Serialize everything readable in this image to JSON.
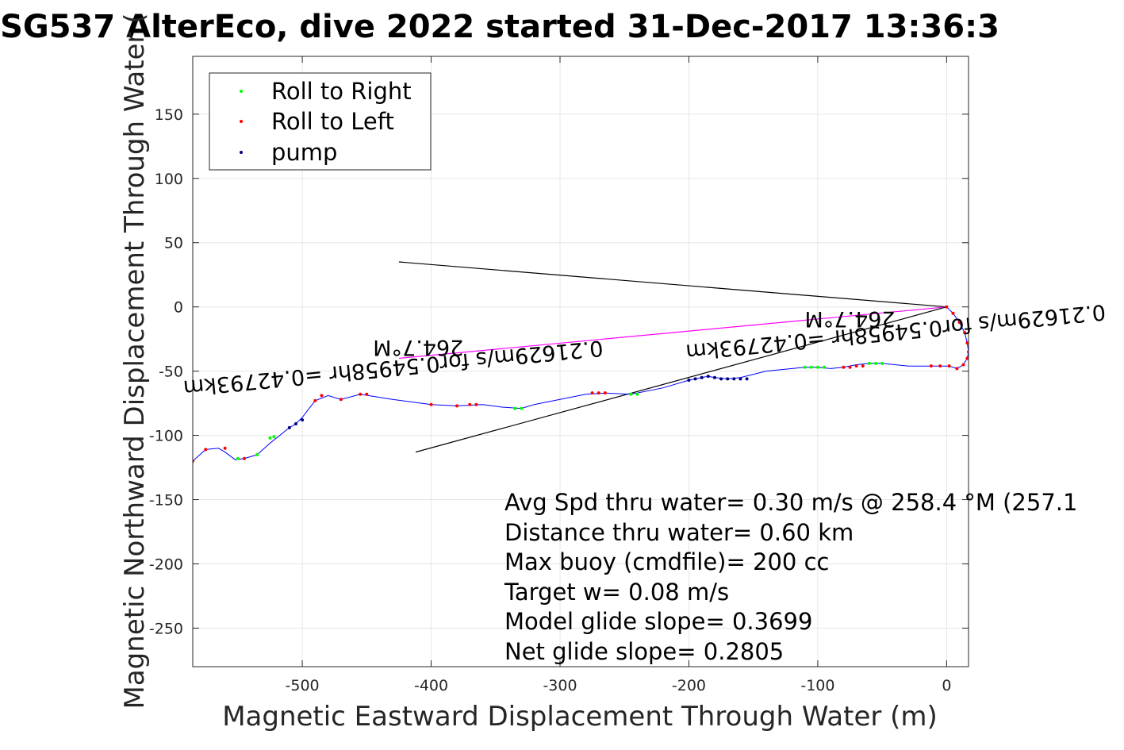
{
  "chart_data": {
    "type": "line",
    "title": "SG537 AlterEco, dive 2022 started 31-Dec-2017 13:36:3",
    "xlabel": "Magnetic Eastward Displacement Through Water (m)",
    "ylabel": "Magnetic Northward Displacement Through Water (",
    "xlim": [
      -585,
      17
    ],
    "ylim": [
      -280,
      195
    ],
    "xticks": [
      -500,
      -400,
      -300,
      -200,
      -100,
      0
    ],
    "yticks": [
      -250,
      -200,
      -150,
      -100,
      -50,
      0,
      50,
      100,
      150
    ],
    "xtick_labels": [
      "-500",
      "-400",
      "-300",
      "-200",
      "-100",
      "0"
    ],
    "ytick_labels": [
      "-250",
      "-200",
      "-150",
      "-100",
      "-50",
      "0",
      "50",
      "100",
      "150"
    ],
    "grid": true,
    "legend_position": "top-left",
    "legend": [
      {
        "label": "Roll to Right",
        "color": "#00ff00"
      },
      {
        "label": "Roll to Left",
        "color": "#ff0000"
      },
      {
        "label": "pump",
        "color": "#000080"
      }
    ],
    "track": {
      "color": "#0000ff",
      "x": [
        0,
        5,
        10,
        14,
        16,
        17,
        16,
        13,
        8,
        2,
        -5,
        -12,
        -30,
        -50,
        -60,
        -70,
        -80,
        -90,
        -100,
        -110,
        -120,
        -140,
        -160,
        -170,
        -180,
        -185,
        -190,
        -200,
        -220,
        -245,
        -265,
        -280,
        -300,
        -320,
        -330,
        -345,
        -360,
        -380,
        -400,
        -430,
        -455,
        -470,
        -480,
        -490,
        -500,
        -505,
        -510,
        -525,
        -535,
        -545,
        -552,
        -560,
        -565,
        -575,
        -585
      ],
      "y": [
        0,
        -5,
        -12,
        -20,
        -28,
        -35,
        -40,
        -45,
        -48,
        -46,
        -46,
        -46,
        -46,
        -44,
        -44,
        -45,
        -47,
        -48,
        -47,
        -47,
        -48,
        -50,
        -55,
        -56,
        -55,
        -54,
        -55,
        -57,
        -63,
        -68,
        -67,
        -68,
        -72,
        -76,
        -79,
        -78,
        -76,
        -77,
        -76,
        -72,
        -68,
        -72,
        -69,
        -73,
        -86,
        -91,
        -94,
        -106,
        -115,
        -118,
        -119,
        -113,
        -110,
        -111,
        -120
      ]
    },
    "roll_right": {
      "color": "#00ff00",
      "x": [
        -110,
        -105,
        -100,
        -95,
        -60,
        -55,
        -50,
        -245,
        -240,
        -335,
        -330,
        -525,
        -522,
        -550,
        -535
      ],
      "y": [
        -47,
        -47,
        -47,
        -47,
        -44,
        -44,
        -44,
        -68,
        -68,
        -79,
        -79,
        -102,
        -101,
        -118,
        -115
      ]
    },
    "roll_left": {
      "color": "#ff0000",
      "x": [
        0,
        5,
        10,
        14,
        16,
        17,
        16,
        13,
        8,
        2,
        -5,
        -12,
        -80,
        -75,
        -70,
        -65,
        -275,
        -270,
        -265,
        -370,
        -365,
        -380,
        -400,
        -455,
        -450,
        -470,
        -485,
        -490,
        -545,
        -560,
        -575,
        -585
      ],
      "y": [
        0,
        -5,
        -12,
        -20,
        -28,
        -35,
        -40,
        -45,
        -48,
        -46,
        -46,
        -46,
        -47,
        -47,
        -46,
        -46,
        -67,
        -67,
        -67,
        -76,
        -76,
        -77,
        -76,
        -68,
        -68,
        -72,
        -69,
        -73,
        -118,
        -110,
        -111,
        -120
      ]
    },
    "pump": {
      "color": "#000080",
      "x": [
        -200,
        -195,
        -190,
        -185,
        -180,
        -175,
        -170,
        -165,
        -160,
        -155,
        -510,
        -505,
        -500
      ],
      "y": [
        -57,
        -56,
        -55,
        -54,
        -55,
        -56,
        -56,
        -56,
        -56,
        -56,
        -94,
        -91,
        -88
      ]
    },
    "reference_lines": [
      {
        "x": [
          0,
          -425
        ],
        "y": [
          0,
          35
        ],
        "color": "#000000"
      },
      {
        "x": [
          0,
          -425
        ],
        "y": [
          0,
          -40
        ],
        "color": "#ff00ff"
      },
      {
        "x": [
          0,
          -412
        ],
        "y": [
          0,
          -113
        ],
        "color": "#000000"
      }
    ],
    "line_labels": [
      {
        "text": "264.7°M",
        "x": -410,
        "y": -26,
        "rotation": 180
      },
      {
        "text": "0.21629m/s for0.54958hr =0.42793km",
        "x": -430,
        "y": -42,
        "rotation": 174.5
      },
      {
        "text": "264.7°M",
        "x": -75,
        "y": -4,
        "rotation": 180
      },
      {
        "text": "0.21629m/s for0.54958hr =0.42793km",
        "x": -40,
        "y": -14,
        "rotation": 174.5
      }
    ],
    "annotations": [
      "Avg Spd thru water=  0.30 m/s @ 258.4 °M (257.1",
      "Distance thru water=  0.60 km",
      "Max buoy (cmdfile)= 200 cc",
      "Target w= 0.08 m/s",
      "Model glide slope= 0.3699",
      "Net glide slope= 0.2805"
    ]
  }
}
